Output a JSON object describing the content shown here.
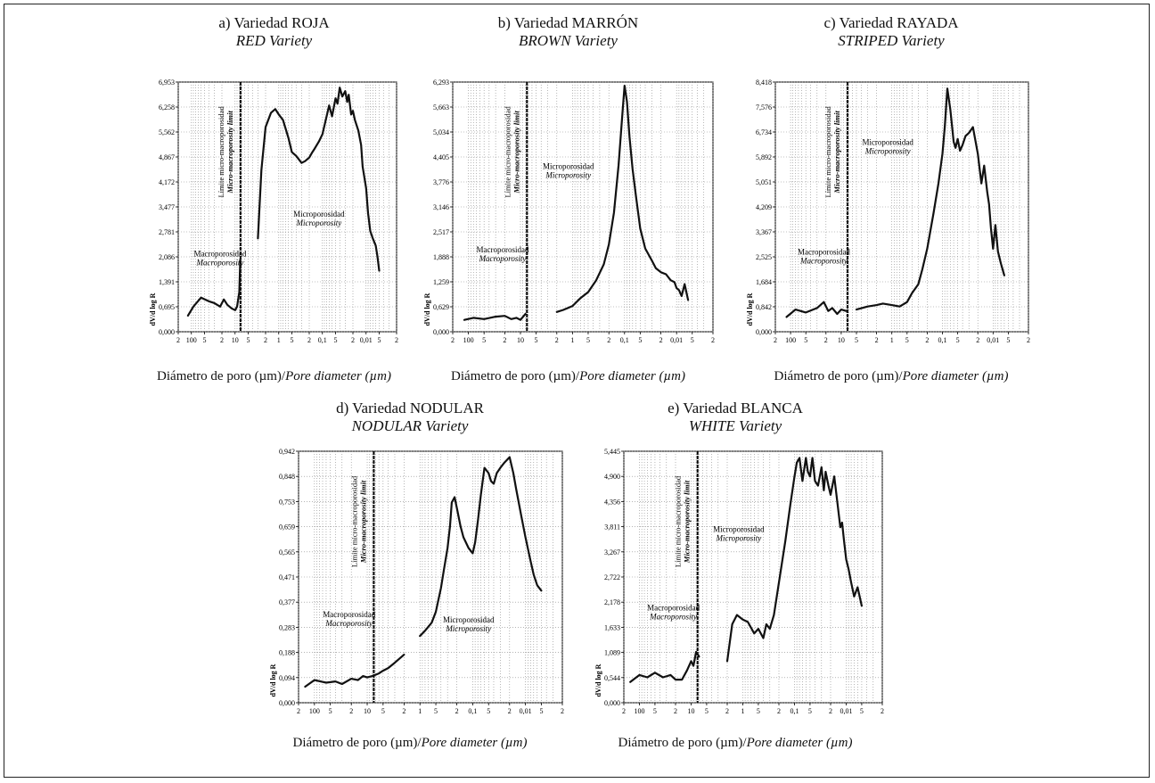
{
  "chart_data": [
    {
      "type": "line",
      "title": "a) Variedad ROJA",
      "subtitle": "RED Variety",
      "ylabel": "dV/d log R",
      "xlabel_es": "Diámetro de poro (µm)/",
      "xlabel_en": "Pore diameter (µm)",
      "x_scale": "log-reversed",
      "xlim": [
        200,
        0.002
      ],
      "ylim": [
        0,
        6.953
      ],
      "yticks": [
        "0,000",
        "0,695",
        "1,391",
        "2,086",
        "2,781",
        "3,477",
        "4,172",
        "4,867",
        "5,562",
        "6,258",
        "6,953"
      ],
      "xticks": [
        {
          "v": 200,
          "t": "2"
        },
        {
          "v": 100,
          "t": "100"
        },
        {
          "v": 50,
          "t": "5"
        },
        {
          "v": 20,
          "t": "2"
        },
        {
          "v": 10,
          "t": "10"
        },
        {
          "v": 5,
          "t": "5"
        },
        {
          "v": 2,
          "t": "2"
        },
        {
          "v": 1,
          "t": "1"
        },
        {
          "v": 0.5,
          "t": "5"
        },
        {
          "v": 0.2,
          "t": "2"
        },
        {
          "v": 0.1,
          "t": "0,1"
        },
        {
          "v": 0.05,
          "t": "5"
        },
        {
          "v": 0.02,
          "t": "2"
        },
        {
          "v": 0.01,
          "t": "0,01"
        },
        {
          "v": 0.005,
          "t": "5"
        },
        {
          "v": 0.002,
          "t": "2"
        }
      ],
      "limit_x": 7.5,
      "limit_label": "Límite micro-macroporosidad",
      "limit_label_en": "Micro-macroporosity limit",
      "annotations": [
        {
          "es": "Macroporosidad",
          "en": "Macroporosity",
          "x": 22,
          "y": 2.1
        },
        {
          "es": "Microporosidad",
          "en": "Microporosity",
          "x": 0.12,
          "y": 3.2
        }
      ],
      "series": [
        {
          "x": [
            120,
            90,
            60,
            40,
            30,
            22,
            18,
            15,
            12,
            10,
            9,
            8,
            7.6
          ],
          "y": [
            0.45,
            0.7,
            0.95,
            0.85,
            0.8,
            0.7,
            0.9,
            0.75,
            0.65,
            0.6,
            0.7,
            1.1,
            2.0
          ]
        },
        {
          "x": [
            3,
            2.5,
            2,
            1.5,
            1.2,
            1,
            0.8,
            0.6,
            0.5,
            0.4,
            0.3,
            0.25,
            0.2,
            0.17,
            0.15,
            0.12,
            0.1,
            0.08,
            0.07,
            0.06,
            0.05,
            0.045,
            0.04,
            0.035,
            0.03,
            0.027,
            0.025,
            0.022,
            0.02,
            0.018,
            0.015,
            0.013,
            0.012,
            0.01,
            0.009,
            0.008,
            0.007,
            0.006,
            0.0055,
            0.005
          ],
          "y": [
            2.6,
            4.5,
            5.7,
            6.1,
            6.2,
            6.05,
            5.9,
            5.4,
            5.0,
            4.9,
            4.7,
            4.75,
            4.85,
            5.0,
            5.1,
            5.3,
            5.5,
            6.0,
            6.3,
            6.0,
            6.5,
            6.35,
            6.8,
            6.55,
            6.7,
            6.4,
            6.6,
            6.05,
            6.15,
            5.9,
            5.6,
            5.2,
            4.6,
            4.0,
            3.3,
            2.8,
            2.6,
            2.4,
            2.1,
            1.7
          ]
        }
      ]
    },
    {
      "type": "line",
      "title": "b) Variedad MARRÓN",
      "subtitle": "BROWN Variety",
      "ylabel": "dV/d log R",
      "xlabel_es": "Diámetro de poro (µm)/",
      "xlabel_en": "Pore diameter (µm)",
      "x_scale": "log-reversed",
      "xlim": [
        200,
        0.002
      ],
      "ylim": [
        0,
        6.293
      ],
      "yticks": [
        "0,000",
        "0,629",
        "1,259",
        "1,888",
        "2,517",
        "3,146",
        "3,776",
        "4,405",
        "5,034",
        "5,663",
        "6,293"
      ],
      "xticks": [
        {
          "v": 200,
          "t": "2"
        },
        {
          "v": 100,
          "t": "100"
        },
        {
          "v": 50,
          "t": "5"
        },
        {
          "v": 20,
          "t": "2"
        },
        {
          "v": 10,
          "t": "10"
        },
        {
          "v": 5,
          "t": "5"
        },
        {
          "v": 2,
          "t": "2"
        },
        {
          "v": 1,
          "t": "1"
        },
        {
          "v": 0.5,
          "t": "5"
        },
        {
          "v": 0.2,
          "t": "2"
        },
        {
          "v": 0.1,
          "t": "0,1"
        },
        {
          "v": 0.05,
          "t": "5"
        },
        {
          "v": 0.02,
          "t": "2"
        },
        {
          "v": 0.01,
          "t": "0,01"
        },
        {
          "v": 0.005,
          "t": "5"
        },
        {
          "v": 0.002,
          "t": "2"
        }
      ],
      "limit_x": 7.5,
      "limit_label": "Límite micro-macroporosidad",
      "limit_label_en": "Micro-macroporosity limit",
      "annotations": [
        {
          "es": "Macroporosidad",
          "en": "Macroporosity",
          "x": 22,
          "y": 2.0
        },
        {
          "es": "Microporosidad",
          "en": "Microporosity",
          "x": 1.2,
          "y": 4.1
        }
      ],
      "series": [
        {
          "x": [
            120,
            80,
            50,
            30,
            20,
            15,
            12,
            10,
            8
          ],
          "y": [
            0.3,
            0.35,
            0.32,
            0.38,
            0.4,
            0.32,
            0.35,
            0.3,
            0.45
          ]
        },
        {
          "x": [
            2,
            1.5,
            1,
            0.7,
            0.5,
            0.35,
            0.25,
            0.2,
            0.16,
            0.13,
            0.11,
            0.1,
            0.09,
            0.08,
            0.07,
            0.06,
            0.05,
            0.04,
            0.03,
            0.025,
            0.02,
            0.016,
            0.013,
            0.011,
            0.01,
            0.009,
            0.008,
            0.007,
            0.006
          ],
          "y": [
            0.5,
            0.55,
            0.65,
            0.85,
            1.0,
            1.3,
            1.7,
            2.2,
            3.0,
            4.2,
            5.5,
            6.2,
            5.8,
            4.9,
            4.1,
            3.4,
            2.6,
            2.1,
            1.8,
            1.6,
            1.5,
            1.45,
            1.3,
            1.25,
            1.1,
            1.05,
            0.9,
            1.2,
            0.8
          ]
        }
      ]
    },
    {
      "type": "line",
      "title": "c) Variedad RAYADA",
      "subtitle": "STRIPED Variety",
      "ylabel": "dV/d log R",
      "xlabel_es": "Diámetro de poro (µm)/",
      "xlabel_en": "Pore diameter (µm)",
      "x_scale": "log-reversed",
      "xlim": [
        200,
        0.002
      ],
      "ylim": [
        0,
        8.418
      ],
      "yticks": [
        "0,000",
        "0,842",
        "1,684",
        "2,525",
        "3,367",
        "4,209",
        "5,051",
        "5,892",
        "6,734",
        "7,576",
        "8,418"
      ],
      "xticks": [
        {
          "v": 200,
          "t": "2"
        },
        {
          "v": 100,
          "t": "100"
        },
        {
          "v": 50,
          "t": "5"
        },
        {
          "v": 20,
          "t": "2"
        },
        {
          "v": 10,
          "t": "10"
        },
        {
          "v": 5,
          "t": "5"
        },
        {
          "v": 2,
          "t": "2"
        },
        {
          "v": 1,
          "t": "1"
        },
        {
          "v": 0.5,
          "t": "5"
        },
        {
          "v": 0.2,
          "t": "2"
        },
        {
          "v": 0.1,
          "t": "0,1"
        },
        {
          "v": 0.05,
          "t": "5"
        },
        {
          "v": 0.02,
          "t": "2"
        },
        {
          "v": 0.01,
          "t": "0,01"
        },
        {
          "v": 0.005,
          "t": "5"
        },
        {
          "v": 0.002,
          "t": "2"
        }
      ],
      "limit_x": 7.5,
      "limit_label": "Límite micro-macroporosidad",
      "limit_label_en": "Micro-macroporosity limit",
      "annotations": [
        {
          "es": "Macroporosidad",
          "en": "Macroporosity",
          "x": 22,
          "y": 2.6
        },
        {
          "es": "Microporosidad",
          "en": "Microporosity",
          "x": 1.2,
          "y": 6.3
        }
      ],
      "series": [
        {
          "x": [
            120,
            80,
            50,
            30,
            22,
            18,
            15,
            12,
            10,
            8
          ],
          "y": [
            0.5,
            0.75,
            0.65,
            0.8,
            1.0,
            0.7,
            0.8,
            0.6,
            0.75,
            0.7
          ]
        },
        {
          "x": [
            5,
            3,
            2,
            1.5,
            1,
            0.7,
            0.5,
            0.4,
            0.3,
            0.25,
            0.2,
            0.15,
            0.12,
            0.1,
            0.09,
            0.08,
            0.07,
            0.06,
            0.055,
            0.05,
            0.045,
            0.04,
            0.035,
            0.03,
            0.025,
            0.02,
            0.017,
            0.015,
            0.013,
            0.012,
            0.011,
            0.01,
            0.009,
            0.008,
            0.007,
            0.006
          ],
          "y": [
            0.75,
            0.85,
            0.9,
            0.95,
            0.9,
            0.85,
            1.0,
            1.3,
            1.6,
            2.1,
            2.8,
            4.0,
            5.0,
            6.0,
            6.9,
            8.2,
            7.5,
            6.4,
            6.2,
            6.5,
            6.1,
            6.3,
            6.6,
            6.7,
            6.9,
            6.0,
            5.0,
            5.6,
            4.7,
            4.3,
            3.5,
            2.8,
            3.6,
            2.7,
            2.3,
            1.9
          ]
        }
      ]
    },
    {
      "type": "line",
      "title": "d) Variedad NODULAR",
      "subtitle": "NODULAR Variety",
      "ylabel": "dV/d log R",
      "xlabel_es": "Diámetro de poro (µm)/",
      "xlabel_en": "Pore diameter (µm)",
      "x_scale": "log-reversed",
      "xlim": [
        200,
        0.002
      ],
      "ylim": [
        0,
        0.942
      ],
      "yticks": [
        "0,000",
        "0,094",
        "0,188",
        "0,283",
        "0,377",
        "0,471",
        "0,565",
        "0,659",
        "0,753",
        "0,848",
        "0,942"
      ],
      "xticks": [
        {
          "v": 200,
          "t": "2"
        },
        {
          "v": 100,
          "t": "100"
        },
        {
          "v": 50,
          "t": "5"
        },
        {
          "v": 20,
          "t": "2"
        },
        {
          "v": 10,
          "t": "10"
        },
        {
          "v": 5,
          "t": "5"
        },
        {
          "v": 2,
          "t": "2"
        },
        {
          "v": 1,
          "t": "1"
        },
        {
          "v": 0.5,
          "t": "5"
        },
        {
          "v": 0.2,
          "t": "2"
        },
        {
          "v": 0.1,
          "t": "0,1"
        },
        {
          "v": 0.05,
          "t": "5"
        },
        {
          "v": 0.02,
          "t": "2"
        },
        {
          "v": 0.01,
          "t": "0,01"
        },
        {
          "v": 0.005,
          "t": "5"
        },
        {
          "v": 0.002,
          "t": "2"
        }
      ],
      "limit_x": 7.5,
      "limit_label": "Límite micro-macroporosidad",
      "limit_label_en": "Micro-macroporosity limit",
      "annotations": [
        {
          "es": "Macroporosidad",
          "en": "Macroporosity",
          "x": 22,
          "y": 0.32
        },
        {
          "es": "Microporosidad",
          "en": "Microporosity",
          "x": 0.12,
          "y": 0.3
        }
      ],
      "series": [
        {
          "x": [
            150,
            100,
            60,
            40,
            30,
            20,
            15,
            12,
            10,
            8,
            6,
            5,
            4,
            3,
            2
          ],
          "y": [
            0.06,
            0.085,
            0.075,
            0.08,
            0.07,
            0.09,
            0.085,
            0.1,
            0.095,
            0.1,
            0.11,
            0.12,
            0.13,
            0.15,
            0.18
          ]
        },
        {
          "x": [
            1,
            0.8,
            0.6,
            0.5,
            0.4,
            0.35,
            0.3,
            0.27,
            0.25,
            0.22,
            0.2,
            0.17,
            0.15,
            0.12,
            0.1,
            0.09,
            0.08,
            0.07,
            0.06,
            0.05,
            0.045,
            0.04,
            0.035,
            0.03,
            0.025,
            0.02,
            0.017,
            0.015,
            0.012,
            0.01,
            0.008,
            0.007,
            0.006,
            0.005
          ],
          "y": [
            0.25,
            0.27,
            0.3,
            0.34,
            0.43,
            0.5,
            0.58,
            0.66,
            0.75,
            0.77,
            0.73,
            0.66,
            0.62,
            0.58,
            0.56,
            0.6,
            0.68,
            0.78,
            0.88,
            0.86,
            0.83,
            0.82,
            0.86,
            0.88,
            0.9,
            0.92,
            0.86,
            0.8,
            0.7,
            0.62,
            0.53,
            0.48,
            0.44,
            0.42
          ]
        }
      ]
    },
    {
      "type": "line",
      "title": "e) Variedad BLANCA",
      "subtitle": "WHITE Variety",
      "ylabel": "dV/d log R",
      "xlabel_es": "Diámetro de poro (µm)/",
      "xlabel_en": "Pore diameter (µm)",
      "x_scale": "log-reversed",
      "xlim": [
        200,
        0.002
      ],
      "ylim": [
        0,
        5.445
      ],
      "yticks": [
        "0,000",
        "0,544",
        "1,089",
        "1,633",
        "2,178",
        "2,722",
        "3,267",
        "3,811",
        "4,356",
        "4,900",
        "5,445"
      ],
      "xticks": [
        {
          "v": 200,
          "t": "2"
        },
        {
          "v": 100,
          "t": "100"
        },
        {
          "v": 50,
          "t": "5"
        },
        {
          "v": 20,
          "t": "2"
        },
        {
          "v": 10,
          "t": "10"
        },
        {
          "v": 5,
          "t": "5"
        },
        {
          "v": 2,
          "t": "2"
        },
        {
          "v": 1,
          "t": "1"
        },
        {
          "v": 0.5,
          "t": "5"
        },
        {
          "v": 0.2,
          "t": "2"
        },
        {
          "v": 0.1,
          "t": "0,1"
        },
        {
          "v": 0.05,
          "t": "5"
        },
        {
          "v": 0.02,
          "t": "2"
        },
        {
          "v": 0.01,
          "t": "0,01"
        },
        {
          "v": 0.005,
          "t": "5"
        },
        {
          "v": 0.002,
          "t": "2"
        }
      ],
      "limit_x": 7.5,
      "limit_label": "Límite micro-macroporosidad",
      "limit_label_en": "Micro-macroporosity limit",
      "annotations": [
        {
          "es": "Macroporosidad",
          "en": "Macroporosity",
          "x": 22,
          "y": 2.0
        },
        {
          "es": "Microporosidad",
          "en": "Microporosity",
          "x": 1.2,
          "y": 3.7
        }
      ],
      "series": [
        {
          "x": [
            150,
            100,
            70,
            50,
            35,
            25,
            20,
            15,
            12,
            10,
            9,
            8,
            7
          ],
          "y": [
            0.45,
            0.6,
            0.55,
            0.65,
            0.55,
            0.6,
            0.5,
            0.5,
            0.7,
            0.9,
            0.8,
            1.1,
            1.0
          ]
        },
        {
          "x": [
            2,
            1.6,
            1.3,
            1,
            0.8,
            0.6,
            0.5,
            0.4,
            0.35,
            0.3,
            0.25,
            0.2,
            0.15,
            0.12,
            0.1,
            0.09,
            0.08,
            0.07,
            0.06,
            0.055,
            0.05,
            0.045,
            0.04,
            0.035,
            0.03,
            0.027,
            0.025,
            0.022,
            0.02,
            0.017,
            0.015,
            0.013,
            0.012,
            0.011,
            0.01,
            0.009,
            0.008,
            0.007,
            0.006,
            0.005
          ],
          "y": [
            0.9,
            1.7,
            1.9,
            1.8,
            1.75,
            1.5,
            1.6,
            1.4,
            1.7,
            1.6,
            1.9,
            2.6,
            3.5,
            4.3,
            4.9,
            5.2,
            5.3,
            4.8,
            5.3,
            5.0,
            4.9,
            5.3,
            4.8,
            4.7,
            5.1,
            4.6,
            5.0,
            4.7,
            4.5,
            4.9,
            4.4,
            3.8,
            3.9,
            3.5,
            3.1,
            2.9,
            2.6,
            2.3,
            2.5,
            2.1
          ]
        }
      ]
    }
  ]
}
